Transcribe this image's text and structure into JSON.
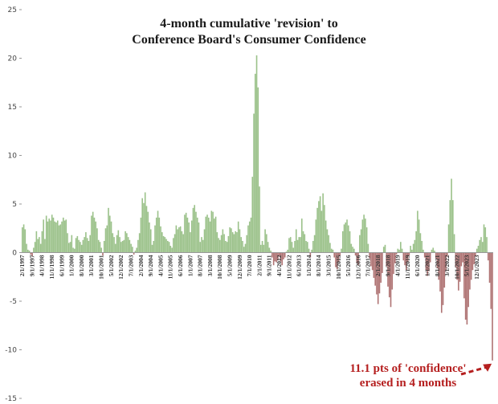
{
  "chart_data": {
    "type": "bar",
    "title": "4-month cumulative 'revision' to",
    "subtitle": "Conference Board's Consumer Confidence",
    "ylim": [
      -15,
      25
    ],
    "y_ticks": [
      -15,
      -10,
      -5,
      0,
      5,
      10,
      15,
      20,
      25
    ],
    "grid": false,
    "colors": {
      "positive": "#9cc28b",
      "negative": "#b07575",
      "annotation": "#b51f1f",
      "axis": "#999999"
    },
    "x_tick_labels": [
      "2/1/1997",
      "9/1/1997",
      "4/1/1998",
      "11/1/1998",
      "6/1/1999",
      "1/1/2000",
      "8/1/2000",
      "3/1/2001",
      "10/1/2001",
      "5/1/2002",
      "12/1/2002",
      "7/1/2003",
      "2/1/2004",
      "9/1/2004",
      "4/1/2005",
      "11/1/2005",
      "6/1/2006",
      "1/1/2007",
      "8/1/2007",
      "3/1/2008",
      "10/1/2008",
      "5/1/2009",
      "12/1/2009",
      "7/1/2010",
      "2/1/2011",
      "9/1/2011",
      "4/1/2012",
      "11/1/2012",
      "6/1/2013",
      "1/1/2014",
      "8/1/2014",
      "3/1/2015",
      "10/1/2015",
      "5/1/2016",
      "12/1/2016",
      "7/1/2017",
      "2/1/2018",
      "9/1/2018",
      "4/1/2019",
      "11/1/2019",
      "6/1/2020",
      "1/1/2021",
      "8/1/2021",
      "3/1/2022",
      "10/1/2022",
      "5/1/2023",
      "12/1/2023"
    ],
    "series": [
      {
        "x_start": "2/1/1997",
        "x_end": "1/1/2024",
        "frequency": "monthly",
        "values": [
          2.6,
          2.9,
          2.4,
          0.9,
          0.3,
          0.2,
          -0.2,
          -0.4,
          0.5,
          1.1,
          2.2,
          1.4,
          1.6,
          0.9,
          2.2,
          3.4,
          1.4,
          3.8,
          3.2,
          3.5,
          3.3,
          3.9,
          3.6,
          3.2,
          3.1,
          3.3,
          2.8,
          2.9,
          3.2,
          3.6,
          3.3,
          3.4,
          2.0,
          1.0,
          1.1,
          1.8,
          0.5,
          0.4,
          1.5,
          1.7,
          1.3,
          1.1,
          0.8,
          1.3,
          1.6,
          2.1,
          1.5,
          1.2,
          1.8,
          3.8,
          4.2,
          3.6,
          3.2,
          2.5,
          1.3,
          1.1,
          0.5,
          -0.3,
          1.2,
          2.5,
          2.8,
          4.6,
          3.8,
          3.2,
          2.0,
          1.6,
          0.9,
          1.8,
          2.3,
          1.6,
          1.1,
          1.2,
          1.3,
          2.2,
          2.0,
          1.6,
          1.3,
          0.9,
          0.6,
          -0.2,
          0.2,
          0.5,
          1.3,
          2.0,
          3.6,
          5.6,
          5.1,
          6.2,
          4.8,
          4.2,
          3.1,
          2.4,
          0.8,
          1.2,
          2.8,
          3.6,
          4.3,
          3.6,
          2.7,
          2.1,
          1.7,
          1.6,
          1.4,
          1.2,
          1.1,
          0.7,
          0.5,
          1.5,
          1.9,
          2.8,
          2.4,
          2.6,
          2.7,
          2.2,
          1.9,
          3.9,
          4.1,
          3.6,
          3.1,
          2.1,
          3.3,
          4.6,
          4.9,
          4.2,
          3.6,
          3.1,
          1.1,
          1.6,
          1.3,
          2.4,
          3.7,
          3.9,
          3.6,
          3.2,
          4.3,
          4.2,
          3.5,
          3.7,
          2.1,
          1.5,
          1.3,
          1.8,
          2.4,
          1.9,
          1.2,
          1.1,
          1.7,
          2.6,
          2.5,
          2.1,
          1.9,
          2.2,
          2.1,
          3.2,
          2.4,
          1.6,
          1.2,
          0.6,
          0.9,
          1.8,
          2.8,
          3.2,
          3.6,
          7.8,
          14.3,
          18.4,
          20.3,
          17.0,
          6.8,
          0.8,
          1.2,
          0.8,
          2.4,
          1.9,
          1.1,
          0.5,
          0.2,
          -0.5,
          -1.3,
          -0.9,
          -1.0,
          -0.8,
          -0.4,
          -0.9,
          -1.3,
          -0.7,
          -0.5,
          0.1,
          0.3,
          1.5,
          1.6,
          1.1,
          0.5,
          1.2,
          2.4,
          1.3,
          1.6,
          1.6,
          3.5,
          2.2,
          1.9,
          1.2,
          1.1,
          0.4,
          -0.5,
          0.3,
          1.2,
          1.8,
          3.4,
          4.6,
          5.3,
          5.8,
          4.3,
          6.1,
          4.9,
          3.3,
          2.4,
          1.8,
          1.0,
          0.4,
          0.3,
          -0.5,
          -1.5,
          -1.7,
          -1.0,
          -0.3,
          0.4,
          2.2,
          2.9,
          3.1,
          3.4,
          2.8,
          2.2,
          0.9,
          0.6,
          0.4,
          -0.3,
          -1.1,
          -1.3,
          1.8,
          2.4,
          3.4,
          3.9,
          3.5,
          2.6,
          0.9,
          -0.6,
          -1.4,
          -1.8,
          -2.6,
          -3.4,
          -4.3,
          -5.3,
          -4.2,
          -3.1,
          -2.1,
          0.6,
          0.8,
          -1.4,
          -3.5,
          -4.6,
          -5.6,
          -3.8,
          -2.2,
          -1.1,
          -0.2,
          0.4,
          0.3,
          1.1,
          0.4,
          -0.8,
          -1.3,
          -1.8,
          -1.0,
          -0.3,
          0.7,
          0.3,
          0.9,
          1.3,
          2.2,
          4.3,
          3.4,
          2.0,
          1.2,
          0.3,
          -0.5,
          -1.8,
          -2.4,
          -1.9,
          -1.0,
          0.3,
          0.5,
          0.2,
          -0.6,
          -1.6,
          -2.8,
          -4.0,
          -6.2,
          -5.4,
          -3.6,
          -1.9,
          -0.4,
          2.9,
          5.4,
          7.6,
          5.4,
          1.9,
          -1.5,
          -2.8,
          -3.9,
          -3.0,
          -1.4,
          -1.0,
          -4.7,
          -6.9,
          -7.4,
          -5.6,
          -3.8,
          -2.8,
          -1.8,
          -1.2,
          -0.4,
          0.4,
          0.7,
          1.3,
          1.6,
          1.1,
          2.9,
          2.6,
          1.6,
          -0.8,
          -3.1,
          -5.8,
          -11.1
        ]
      }
    ],
    "annotation": {
      "line1": "11.1 pts of 'confidence'",
      "line2": "erased in 4 months"
    }
  }
}
